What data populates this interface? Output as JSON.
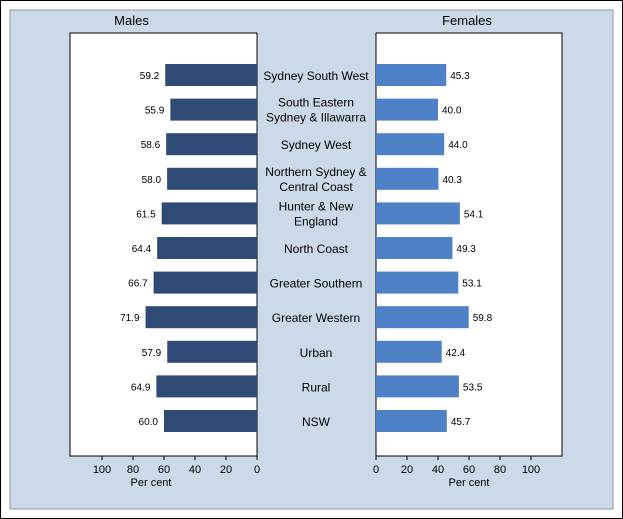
{
  "chart_data": {
    "type": "bar",
    "categories": [
      "Sydney South West",
      "South Eastern Sydney & Illawarra",
      "Sydney West",
      "Northern Sydney & Central Coast",
      "Hunter & New England",
      "North Coast",
      "Greater Southern",
      "Greater Western",
      "Urban",
      "Rural",
      "NSW"
    ],
    "category_lines": [
      [
        "Sydney South West"
      ],
      [
        "South Eastern",
        "Sydney & Illawarra"
      ],
      [
        "Sydney West"
      ],
      [
        "Northern Sydney &",
        "Central Coast"
      ],
      [
        "Hunter & New",
        "England"
      ],
      [
        "North Coast"
      ],
      [
        "Greater Southern"
      ],
      [
        "Greater Western"
      ],
      [
        "Urban"
      ],
      [
        "Rural"
      ],
      [
        "NSW"
      ]
    ],
    "series": [
      {
        "name": "Males",
        "values": [
          59.2,
          55.9,
          58.6,
          58.0,
          61.5,
          64.4,
          66.7,
          71.9,
          57.9,
          64.9,
          60.0
        ],
        "color": "#2e4a75"
      },
      {
        "name": "Females",
        "values": [
          45.3,
          40.0,
          44.0,
          40.3,
          54.1,
          49.3,
          53.1,
          59.8,
          42.4,
          53.5,
          45.7
        ],
        "color": "#4f81c7"
      }
    ],
    "xlabel": "Per cent",
    "xlim": [
      0,
      120
    ],
    "xticks": [
      0,
      20,
      40,
      60,
      80,
      100
    ],
    "value_labels": [
      "59.2",
      "55.9",
      "58.6",
      "58.0",
      "61.5",
      "64.4",
      "66.7",
      "71.9",
      "57.9",
      "64.9",
      "60.0"
    ],
    "value_labels_female": [
      "45.3",
      "40.0",
      "44.0",
      "40.3",
      "54.1",
      "49.3",
      "53.1",
      "59.8",
      "42.4",
      "53.5",
      "45.7"
    ],
    "xtick_labels": [
      "0",
      "20",
      "40",
      "60",
      "80",
      "100"
    ],
    "background_color": "#cbd9e8",
    "plot_background": "#ffffff"
  }
}
